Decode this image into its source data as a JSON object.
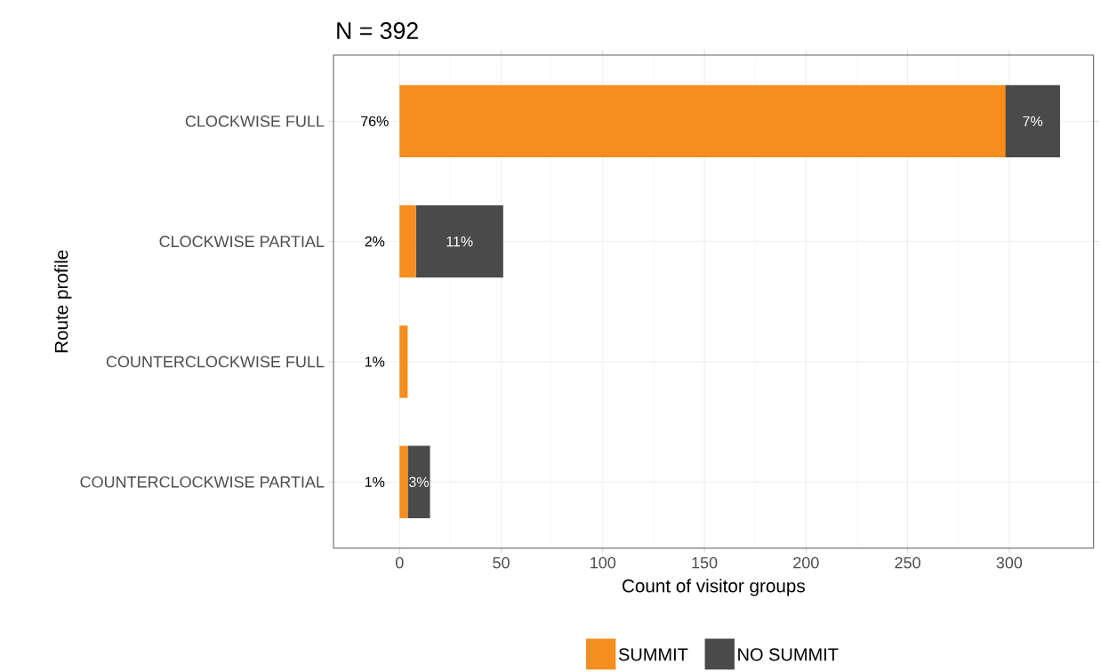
{
  "chart_data": {
    "type": "bar",
    "orientation": "horizontal",
    "stacked": true,
    "title": "N = 392",
    "xlabel": "Count of visitor groups",
    "ylabel": "Route profile",
    "categories": [
      "CLOCKWISE FULL",
      "CLOCKWISE PARTIAL",
      "COUNTERCLOCKWISE FULL",
      "COUNTERCLOCKWISE PARTIAL"
    ],
    "series": [
      {
        "name": "SUMMIT",
        "color": "#f58d1f",
        "values": [
          298,
          8,
          4,
          4
        ]
      },
      {
        "name": "NO SUMMIT",
        "color": "#4a4a4b",
        "values": [
          27,
          43,
          0,
          11
        ]
      }
    ],
    "annotations": [
      "76%",
      "2%",
      "1%",
      "1%",
      "7%",
      "11%",
      "3%"
    ],
    "xlim": [
      -32.5,
      341.5
    ],
    "xticks": [
      0,
      50,
      100,
      150,
      200,
      250,
      300
    ],
    "grid": true,
    "legend": "bottom"
  }
}
